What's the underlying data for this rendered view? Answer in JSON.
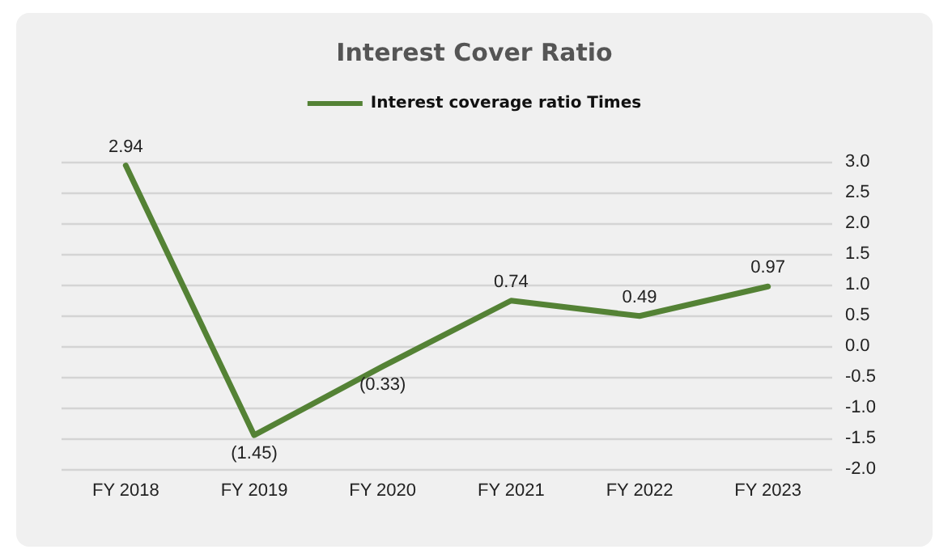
{
  "chart_data": {
    "type": "line",
    "title": "Interest Cover Ratio",
    "categories": [
      "FY 2018",
      "FY 2019",
      "FY 2020",
      "FY 2021",
      "FY 2022",
      "FY 2023"
    ],
    "series": [
      {
        "name": "Interest coverage ratio Times",
        "color": "#548235",
        "values": [
          2.94,
          -1.45,
          -0.33,
          0.74,
          0.49,
          0.97
        ],
        "value_labels": [
          "2.94",
          "(1.45)",
          "(0.33)",
          "0.74",
          "0.49",
          "0.97"
        ]
      }
    ],
    "ylim": [
      -2,
      3
    ],
    "yticks": [
      {
        "value": -2,
        "label": "-2.0"
      },
      -1.5,
      {
        "value": -1,
        "label": "-1.0"
      },
      -0.5,
      {
        "value": 0,
        "label": "0.0"
      },
      0.5,
      {
        "value": 1,
        "label": "1.0"
      },
      1.5,
      {
        "value": 2,
        "label": "2.0"
      },
      2.5,
      {
        "value": 3,
        "label": "3.0"
      }
    ],
    "grid": "y",
    "legend": "top",
    "marker": "none",
    "line_style": "solid"
  }
}
